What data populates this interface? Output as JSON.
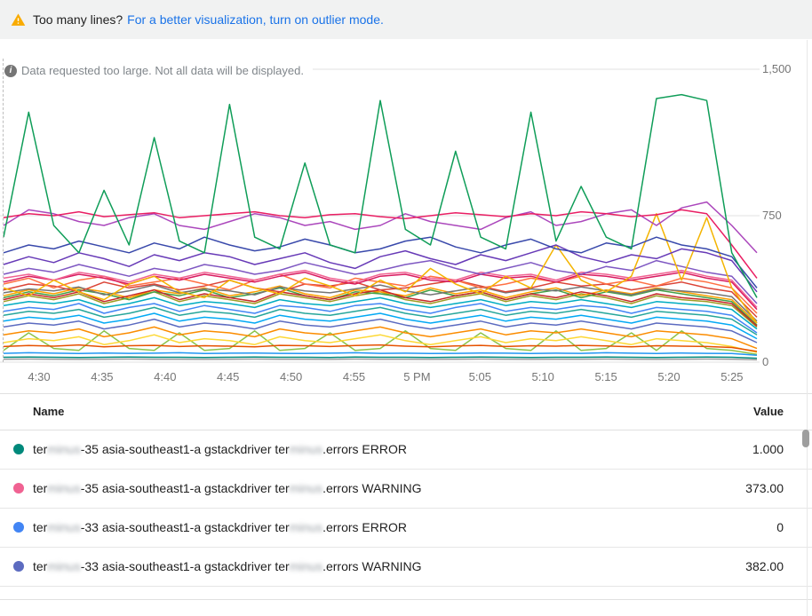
{
  "banner": {
    "warning_text": "Too many lines?",
    "link_text": "For a better visualization, turn on outlier mode."
  },
  "notice": {
    "text": "Data requested too large. Not all data will be displayed."
  },
  "icons": {
    "info_glyph": "i"
  },
  "colors": {
    "link": "#1a73e8",
    "warning_triangle": "#f9ab00",
    "gridline": "#e0e0e0",
    "axis_text": "#757575"
  },
  "chart_data": {
    "type": "line",
    "title": "",
    "xlabel": "",
    "ylabel": "",
    "ylim": [
      0,
      1500
    ],
    "grid": true,
    "x_ticks": [
      "4:30",
      "4:35",
      "4:40",
      "4:45",
      "4:50",
      "4:55",
      "5 PM",
      "5:05",
      "5:10",
      "5:15",
      "5:20",
      "5:25"
    ],
    "y_ticks": [
      {
        "label": "1,500",
        "value": 1500
      },
      {
        "label": "750",
        "value": 750
      },
      {
        "label": "0",
        "value": 0
      }
    ],
    "series": [
      {
        "color": "#03a9f4",
        "values": [
          210,
          230,
          220,
          240,
          200,
          220,
          250,
          210,
          230,
          220,
          200,
          240,
          220,
          210,
          230,
          250,
          220,
          200,
          220,
          240,
          210,
          230,
          220,
          240,
          220,
          200,
          230,
          220,
          210,
          190,
          120
        ]
      },
      {
        "color": "#8bc34a",
        "values": [
          60,
          150,
          70,
          60,
          160,
          70,
          60,
          150,
          60,
          70,
          160,
          60,
          70,
          150,
          60,
          70,
          160,
          70,
          60,
          150,
          70,
          60,
          160,
          60,
          70,
          150,
          60,
          160,
          70,
          60,
          40
        ]
      },
      {
        "color": "#fdd835",
        "values": [
          100,
          120,
          110,
          130,
          90,
          110,
          140,
          100,
          120,
          110,
          90,
          130,
          110,
          100,
          120,
          140,
          110,
          90,
          110,
          130,
          100,
          120,
          110,
          130,
          110,
          90,
          120,
          110,
          100,
          80,
          50
        ]
      },
      {
        "color": "#fb8c00",
        "values": [
          140,
          160,
          150,
          170,
          130,
          150,
          180,
          140,
          160,
          150,
          130,
          170,
          150,
          140,
          160,
          180,
          150,
          130,
          150,
          170,
          140,
          160,
          150,
          170,
          150,
          130,
          160,
          150,
          140,
          120,
          70
        ]
      },
      {
        "color": "#5c6bc0",
        "values": [
          180,
          200,
          190,
          210,
          170,
          190,
          220,
          180,
          200,
          190,
          170,
          210,
          190,
          180,
          200,
          220,
          190,
          170,
          190,
          210,
          180,
          200,
          190,
          210,
          190,
          170,
          200,
          190,
          180,
          160,
          100
        ]
      },
      {
        "color": "#26a69a",
        "values": [
          240,
          260,
          250,
          270,
          230,
          250,
          280,
          240,
          260,
          250,
          230,
          270,
          250,
          240,
          260,
          280,
          250,
          230,
          250,
          270,
          240,
          260,
          250,
          270,
          250,
          230,
          260,
          250,
          240,
          220,
          140
        ]
      },
      {
        "color": "#4285f4",
        "values": [
          260,
          280,
          270,
          300,
          250,
          280,
          300,
          260,
          290,
          270,
          250,
          290,
          280,
          260,
          290,
          300,
          270,
          250,
          280,
          300,
          260,
          280,
          270,
          290,
          280,
          250,
          280,
          270,
          260,
          240,
          150
        ]
      },
      {
        "color": "#00acc1",
        "values": [
          290,
          310,
          300,
          320,
          280,
          300,
          330,
          290,
          310,
          300,
          280,
          320,
          300,
          290,
          310,
          330,
          300,
          280,
          300,
          320,
          290,
          310,
          300,
          320,
          300,
          280,
          310,
          300,
          290,
          270,
          170
        ]
      },
      {
        "color": "#9e9d24",
        "values": [
          310,
          340,
          320,
          350,
          300,
          330,
          360,
          310,
          340,
          320,
          300,
          350,
          330,
          310,
          340,
          360,
          320,
          300,
          330,
          350,
          310,
          340,
          320,
          350,
          330,
          300,
          340,
          320,
          310,
          290,
          180
        ]
      },
      {
        "color": "#43a047",
        "values": [
          330,
          360,
          340,
          370,
          350,
          320,
          360,
          340,
          370,
          330,
          350,
          380,
          340,
          320,
          360,
          350,
          330,
          370,
          340,
          360,
          320,
          350,
          370,
          330,
          360,
          340,
          370,
          350,
          330,
          310,
          190
        ]
      },
      {
        "color": "#ffa000",
        "values": [
          340,
          370,
          350,
          380,
          360,
          330,
          370,
          350,
          380,
          340,
          360,
          390,
          350,
          330,
          370,
          360,
          340,
          380,
          350,
          370,
          330,
          360,
          380,
          340,
          370,
          350,
          380,
          360,
          340,
          320,
          200
        ]
      },
      {
        "color": "#c62828",
        "values": [
          320,
          350,
          330,
          360,
          310,
          340,
          370,
          320,
          350,
          330,
          310,
          360,
          340,
          320,
          350,
          370,
          330,
          310,
          340,
          360,
          320,
          350,
          330,
          360,
          340,
          310,
          350,
          330,
          320,
          300,
          185
        ]
      },
      {
        "color": "#757575",
        "values": [
          355,
          375,
          365,
          385,
          345,
          365,
          395,
          355,
          375,
          365,
          345,
          385,
          365,
          355,
          375,
          395,
          365,
          345,
          365,
          385,
          355,
          375,
          365,
          385,
          365,
          345,
          375,
          365,
          355,
          335,
          210
        ]
      },
      {
        "color": "#db4437",
        "values": [
          370,
          400,
          390,
          360,
          410,
          380,
          400,
          370,
          390,
          420,
          380,
          360,
          400,
          390,
          410,
          370,
          380,
          400,
          420,
          390,
          360,
          380,
          410,
          390,
          400,
          370,
          390,
          410,
          380,
          360,
          230
        ]
      },
      {
        "color": "#ff7043",
        "values": [
          400,
          430,
          380,
          420,
          440,
          390,
          410,
          430,
          400,
          370,
          420,
          450,
          400,
          380,
          430,
          410,
          390,
          440,
          420,
          380,
          400,
          430,
          410,
          440,
          400,
          420,
          390,
          430,
          410,
          380,
          250
        ]
      },
      {
        "color": "#d81b60",
        "values": [
          410,
          440,
          420,
          450,
          430,
          400,
          440,
          420,
          450,
          430,
          410,
          440,
          460,
          420,
          400,
          440,
          450,
          420,
          410,
          450,
          430,
          440,
          410,
          450,
          440,
          420,
          440,
          460,
          430,
          410,
          270
        ]
      },
      {
        "color": "#f06292",
        "values": [
          430,
          450,
          420,
          460,
          440,
          410,
          450,
          430,
          460,
          440,
          420,
          450,
          470,
          430,
          410,
          450,
          460,
          430,
          420,
          460,
          440,
          450,
          420,
          460,
          450,
          430,
          450,
          470,
          440,
          420,
          280
        ]
      },
      {
        "color": "#7e57c2",
        "values": [
          450,
          480,
          460,
          500,
          470,
          440,
          480,
          460,
          500,
          480,
          450,
          470,
          510,
          480,
          450,
          470,
          500,
          520,
          480,
          450,
          480,
          510,
          470,
          450,
          490,
          470,
          520,
          490,
          460,
          440,
          300
        ]
      },
      {
        "color": "#f4b400",
        "values": [
          380,
          340,
          420,
          360,
          320,
          400,
          440,
          360,
          330,
          420,
          380,
          350,
          430,
          390,
          340,
          420,
          360,
          480,
          400,
          350,
          440,
          380,
          600,
          420,
          360,
          440,
          760,
          420,
          740,
          380,
          200
        ]
      },
      {
        "color": "#673ab7",
        "values": [
          500,
          540,
          510,
          560,
          530,
          490,
          550,
          520,
          560,
          540,
          500,
          530,
          560,
          510,
          480,
          540,
          570,
          530,
          500,
          550,
          520,
          560,
          600,
          540,
          510,
          550,
          530,
          580,
          560,
          520,
          360
        ]
      },
      {
        "color": "#3949ab",
        "values": [
          560,
          600,
          580,
          620,
          590,
          560,
          610,
          580,
          640,
          600,
          570,
          590,
          630,
          600,
          560,
          580,
          620,
          640,
          590,
          560,
          600,
          630,
          580,
          560,
          610,
          590,
          640,
          600,
          580,
          540,
          380
        ]
      },
      {
        "color": "#ab47bc",
        "values": [
          700,
          780,
          760,
          720,
          700,
          740,
          760,
          700,
          680,
          720,
          760,
          740,
          700,
          720,
          680,
          700,
          760,
          720,
          700,
          680,
          740,
          770,
          700,
          720,
          760,
          780,
          700,
          790,
          820,
          700,
          560
        ]
      },
      {
        "color": "#e91e63",
        "values": [
          740,
          760,
          750,
          770,
          745,
          755,
          765,
          740,
          750,
          760,
          770,
          750,
          740,
          755,
          760,
          745,
          735,
          750,
          765,
          755,
          745,
          760,
          750,
          770,
          760,
          745,
          755,
          780,
          760,
          600,
          430
        ]
      },
      {
        "color": "#0f9d58",
        "values": [
          640,
          1280,
          700,
          560,
          880,
          600,
          1150,
          620,
          560,
          1320,
          640,
          580,
          1020,
          600,
          560,
          1340,
          680,
          600,
          1080,
          640,
          580,
          1280,
          620,
          900,
          640,
          580,
          1350,
          1370,
          1340,
          560,
          330
        ]
      },
      {
        "color": "#00897b",
        "values": [
          25,
          26,
          25,
          24,
          25,
          26,
          25,
          25,
          24,
          25,
          26,
          25,
          25,
          24,
          26,
          25,
          25,
          24,
          25,
          26,
          25,
          24,
          25,
          25,
          26,
          25,
          24,
          25,
          26,
          25,
          20
        ]
      },
      {
        "color": "#9e9e9e",
        "values": [
          15,
          16,
          15,
          14,
          15,
          16,
          15,
          15,
          14,
          15,
          16,
          15,
          15,
          14,
          16,
          15,
          15,
          14,
          15,
          16,
          15,
          14,
          15,
          15,
          16,
          15,
          14,
          15,
          16,
          15,
          12
        ]
      },
      {
        "color": "#2196f3",
        "values": [
          45,
          48,
          46,
          44,
          47,
          45,
          46,
          48,
          44,
          46,
          47,
          45,
          44,
          46,
          48,
          45,
          46,
          44,
          45,
          47,
          46,
          44,
          46,
          45,
          48,
          46,
          44,
          47,
          45,
          44,
          35
        ]
      },
      {
        "color": "#e65100",
        "values": [
          80,
          85,
          82,
          88,
          78,
          84,
          86,
          80,
          84,
          82,
          78,
          86,
          84,
          80,
          85,
          88,
          82,
          78,
          83,
          86,
          80,
          84,
          82,
          86,
          83,
          78,
          84,
          82,
          80,
          75,
          55
        ]
      }
    ]
  },
  "legend": {
    "columns": {
      "name": "Name",
      "value": "Value"
    },
    "rows": [
      {
        "dot_color": "#00897b",
        "name_segments": [
          {
            "text": "ter",
            "redacted": false
          },
          {
            "text": "minus",
            "redacted": true
          },
          {
            "text": "-35 asia-southeast1-a gstackdriver ter",
            "redacted": false
          },
          {
            "text": "minus",
            "redacted": true
          },
          {
            "text": ".errors ERROR",
            "redacted": false
          }
        ],
        "value": "1.000"
      },
      {
        "dot_color": "#f06292",
        "name_segments": [
          {
            "text": "ter",
            "redacted": false
          },
          {
            "text": "minus",
            "redacted": true
          },
          {
            "text": "-35 asia-southeast1-a gstackdriver ter",
            "redacted": false
          },
          {
            "text": "minus",
            "redacted": true
          },
          {
            "text": ".errors WARNING",
            "redacted": false
          }
        ],
        "value": "373.00"
      },
      {
        "dot_color": "#4285f4",
        "name_segments": [
          {
            "text": "ter",
            "redacted": false
          },
          {
            "text": "minus",
            "redacted": true
          },
          {
            "text": "-33 asia-southeast1-a gstackdriver ter",
            "redacted": false
          },
          {
            "text": "minus",
            "redacted": true
          },
          {
            "text": ".errors ERROR",
            "redacted": false
          }
        ],
        "value": "0"
      },
      {
        "dot_color": "#5c6bc0",
        "name_segments": [
          {
            "text": "ter",
            "redacted": false
          },
          {
            "text": "minus",
            "redacted": true
          },
          {
            "text": "-33 asia-southeast1-a gstackdriver ter",
            "redacted": false
          },
          {
            "text": "minus",
            "redacted": true
          },
          {
            "text": ".errors WARNING",
            "redacted": false
          }
        ],
        "value": "382.00"
      }
    ]
  }
}
